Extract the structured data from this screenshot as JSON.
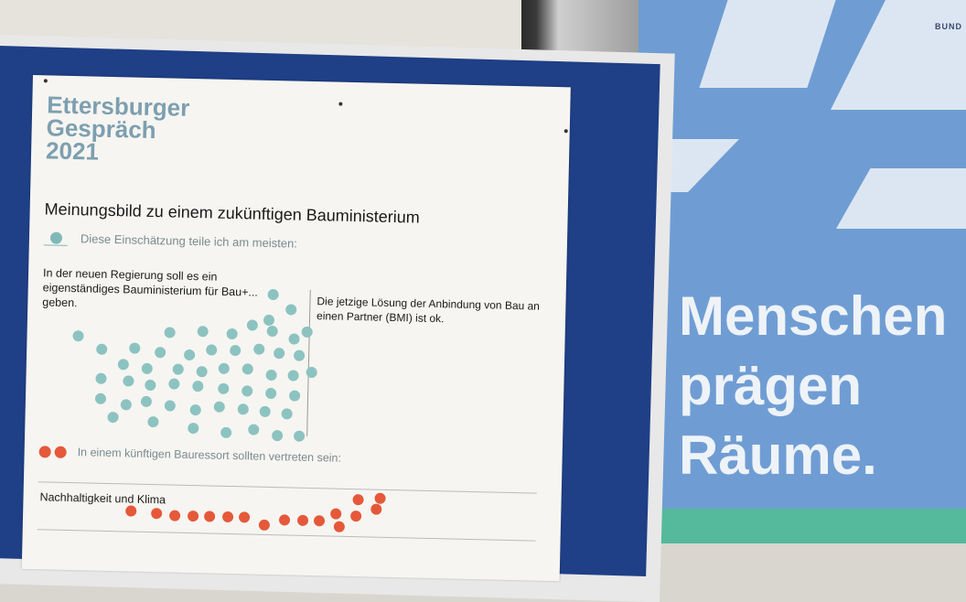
{
  "poster": {
    "event_title": [
      "Ettersburger",
      "Gespräch",
      "2021"
    ],
    "heading": "Meinungsbild zu einem zukünftigen Bauministerium",
    "legend_opinion": "Diese Einschätzung teile ich am meisten:",
    "option_left": "In der neuen Regierung soll es ein eigenständiges Bauministerium für Bau+... geben.",
    "option_right": "Die jetzige Lösung der Anbindung von Bau an einen Partner (BMI) ist ok.",
    "legend_ressort": "In einem künftigen Bauressort sollten vertreten sein:",
    "row_1_label": "Nachhaltigkeit und Klima",
    "teal_color": "#8cc3c0",
    "orange_color": "#e5593a"
  },
  "banner": {
    "brand": "BUND",
    "slogan": [
      "Menschen",
      "prägen",
      "Räume."
    ],
    "background_color": "#6f9dd3"
  }
}
